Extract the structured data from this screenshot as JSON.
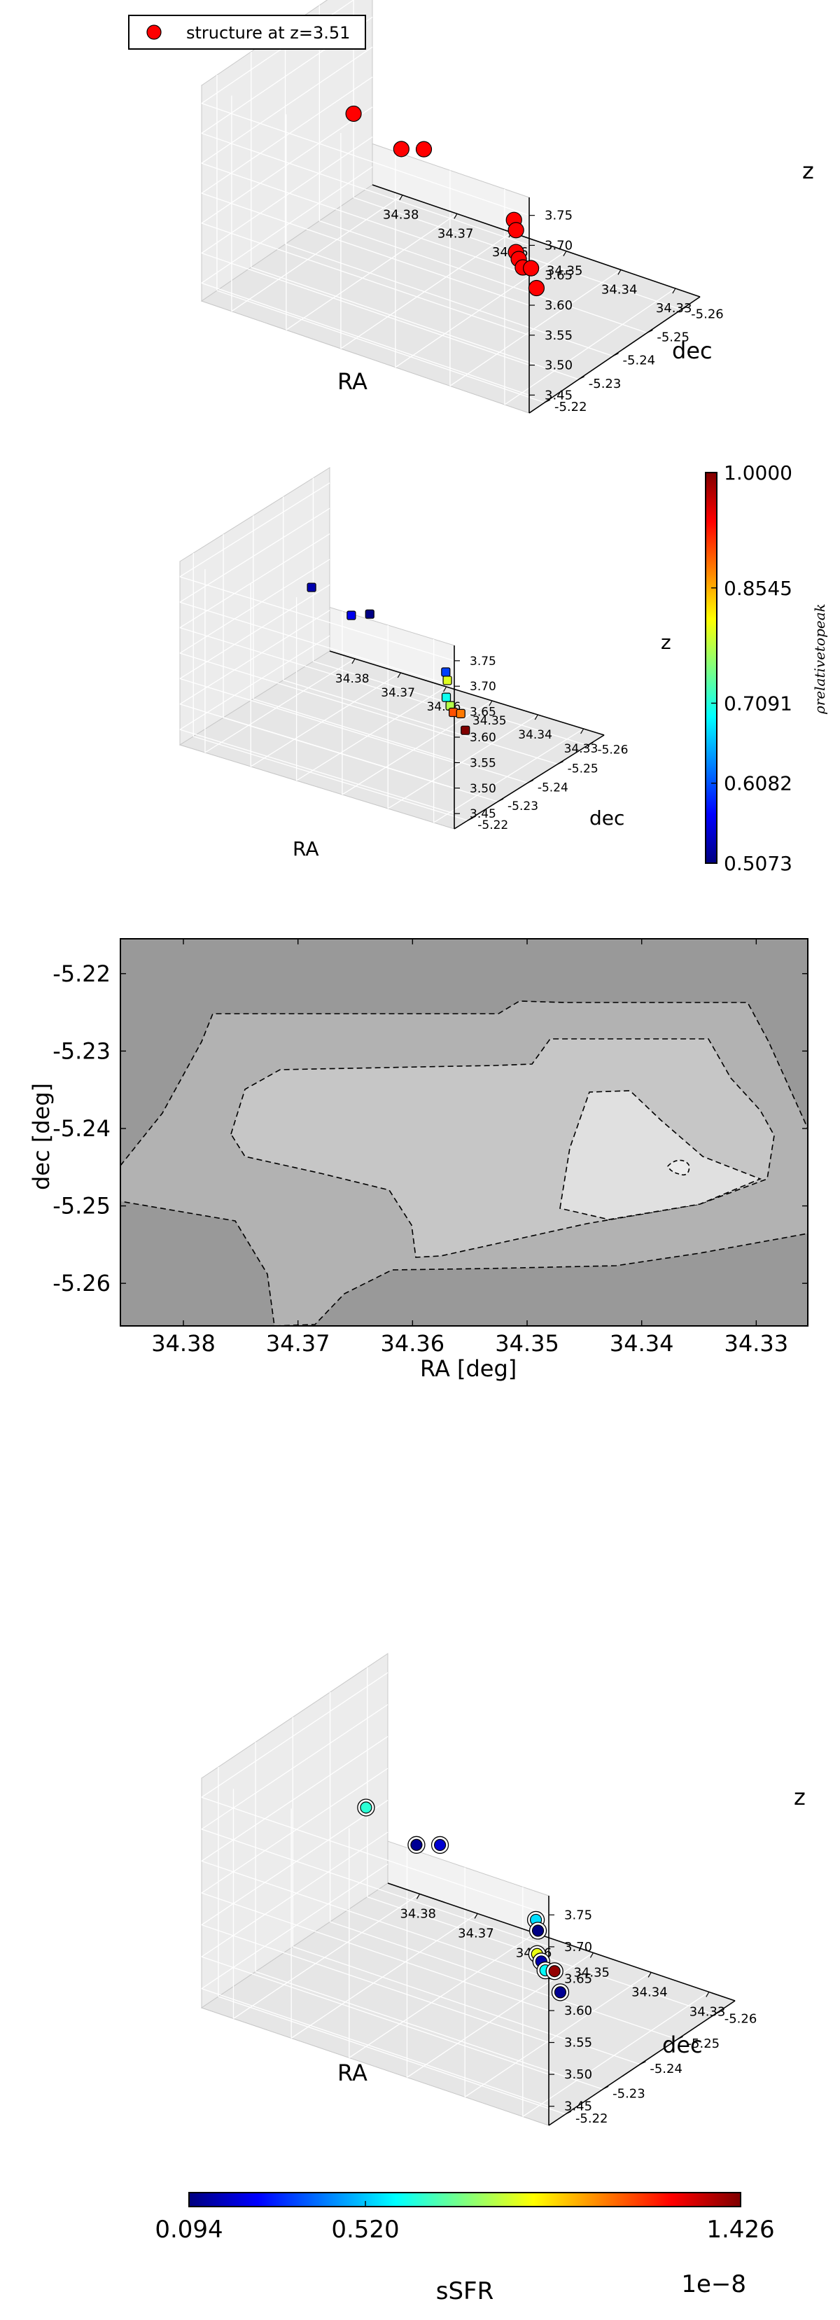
{
  "chart_data": [
    {
      "type": "scatter",
      "projection": "3d",
      "legend": {
        "label": "structure at z=3.51",
        "placement": "top-left",
        "color": "#ff0000"
      },
      "xlabel": "RA",
      "ylabel": "dec",
      "zlabel": "z",
      "xticks": [
        "34.38",
        "34.37",
        "34.36",
        "34.35",
        "34.34",
        "34.33"
      ],
      "yticks": [
        "-5.22",
        "-5.23",
        "-5.24",
        "-5.25",
        "-5.26"
      ],
      "zticks": [
        "3.45",
        "3.50",
        "3.55",
        "3.60",
        "3.65",
        "3.70",
        "3.75"
      ],
      "series": [
        {
          "name": "structure at z=3.51",
          "color": "#ff0000",
          "points": [
            {
              "x": 34.378,
              "y": -5.248,
              "z": 3.63
            },
            {
              "x": 34.368,
              "y": -5.246,
              "z": 3.61
            },
            {
              "x": 34.362,
              "y": -5.243,
              "z": 3.64
            },
            {
              "x": 34.348,
              "y": -5.247,
              "z": 3.55
            },
            {
              "x": 34.347,
              "y": -5.246,
              "z": 3.54
            },
            {
              "x": 34.342,
              "y": -5.238,
              "z": 3.55
            },
            {
              "x": 34.349,
              "y": -5.25,
              "z": 3.47
            },
            {
              "x": 34.347,
              "y": -5.248,
              "z": 3.47
            },
            {
              "x": 34.348,
              "y": -5.252,
              "z": 3.45
            },
            {
              "x": 34.347,
              "y": -5.252,
              "z": 3.42
            }
          ]
        }
      ]
    },
    {
      "type": "scatter",
      "projection": "3d",
      "xlabel": "RA",
      "ylabel": "dec",
      "zlabel": "z",
      "xticks": [
        "34.38",
        "34.37",
        "34.36",
        "34.35",
        "34.34",
        "34.33"
      ],
      "yticks": [
        "-5.22",
        "-5.23",
        "-5.24",
        "-5.25",
        "-5.26"
      ],
      "zticks": [
        "3.45",
        "3.50",
        "3.55",
        "3.60",
        "3.65",
        "3.70",
        "3.75"
      ],
      "colorbar": {
        "label": "ρrelativetopeak",
        "ticks": [
          "0.5073",
          "0.6082",
          "0.7091",
          "0.8545",
          "1.0000"
        ],
        "min": 0.5073,
        "max": 1.0
      },
      "points": [
        {
          "x": 34.378,
          "y": -5.248,
          "z": 3.63,
          "value": 0.53
        },
        {
          "x": 34.368,
          "y": -5.246,
          "z": 3.61,
          "value": 0.56
        },
        {
          "x": 34.362,
          "y": -5.243,
          "z": 3.64,
          "value": 0.51
        },
        {
          "x": 34.348,
          "y": -5.247,
          "z": 3.55,
          "value": 0.6
        },
        {
          "x": 34.347,
          "y": -5.246,
          "z": 3.54,
          "value": 0.8
        },
        {
          "x": 34.342,
          "y": -5.238,
          "z": 3.55,
          "value": 0.7
        },
        {
          "x": 34.349,
          "y": -5.25,
          "z": 3.47,
          "value": 0.78
        },
        {
          "x": 34.347,
          "y": -5.248,
          "z": 3.47,
          "value": 0.9
        },
        {
          "x": 34.348,
          "y": -5.252,
          "z": 3.45,
          "value": 0.88
        },
        {
          "x": 34.347,
          "y": -5.252,
          "z": 3.42,
          "value": 1.0
        }
      ]
    },
    {
      "type": "heatmap",
      "subtype": "contour",
      "xlabel": "RA [deg]",
      "ylabel": "dec [deg]",
      "xticks": [
        "34.38",
        "34.37",
        "34.36",
        "34.35",
        "34.34",
        "34.33"
      ],
      "yticks": [
        "-5.22",
        "-5.23",
        "-5.24",
        "-5.25",
        "-5.26"
      ],
      "xlim": [
        34.3855,
        34.3255
      ],
      "ylim": [
        -5.2655,
        -5.2155
      ],
      "levels": 4,
      "colors": [
        "#999999",
        "#b2b2b2",
        "#c6c6c6",
        "#e0e0e0"
      ]
    },
    {
      "type": "scatter",
      "projection": "3d",
      "xlabel": "RA",
      "ylabel": "dec",
      "zlabel": "z",
      "xticks": [
        "34.38",
        "34.37",
        "34.36",
        "34.35",
        "34.34",
        "34.33"
      ],
      "yticks": [
        "-5.22",
        "-5.23",
        "-5.24",
        "-5.25",
        "-5.26"
      ],
      "zticks": [
        "3.45",
        "3.50",
        "3.55",
        "3.60",
        "3.65",
        "3.70",
        "3.75"
      ],
      "colorbar": {
        "label": "sSFR",
        "ticks": [
          "0.094",
          "0.520",
          "1.426"
        ],
        "offset": "1e−8",
        "min": 0.094,
        "max": 1.426,
        "orientation": "horizontal"
      },
      "points": [
        {
          "x": 34.378,
          "y": -5.248,
          "z": 3.63,
          "value": 0.65
        },
        {
          "x": 34.368,
          "y": -5.246,
          "z": 3.61,
          "value": 0.12
        },
        {
          "x": 34.362,
          "y": -5.243,
          "z": 3.64,
          "value": 0.2
        },
        {
          "x": 34.348,
          "y": -5.247,
          "z": 3.55,
          "value": 0.55
        },
        {
          "x": 34.347,
          "y": -5.246,
          "z": 3.54,
          "value": 0.1
        },
        {
          "x": 34.342,
          "y": -5.238,
          "z": 3.55,
          "value": 0.9
        },
        {
          "x": 34.349,
          "y": -5.25,
          "z": 3.47,
          "value": 0.15
        },
        {
          "x": 34.347,
          "y": -5.248,
          "z": 3.47,
          "value": 0.6
        },
        {
          "x": 34.348,
          "y": -5.252,
          "z": 3.45,
          "value": 1.4
        },
        {
          "x": 34.347,
          "y": -5.252,
          "z": 3.42,
          "value": 0.12
        }
      ]
    }
  ]
}
